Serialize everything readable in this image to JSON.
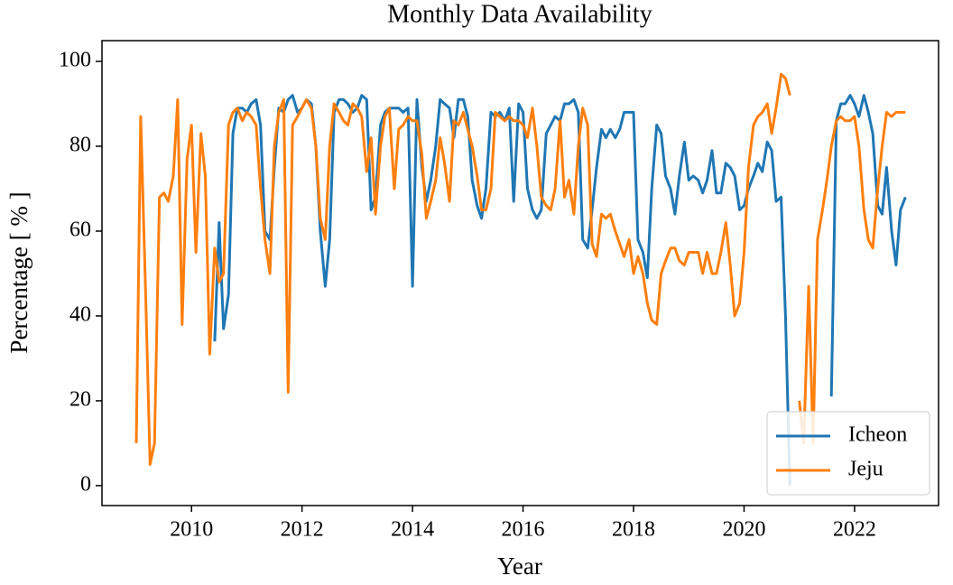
{
  "chart_data": {
    "type": "line",
    "title": "Monthly Data Availability",
    "x_label": "Year",
    "y_label": "Percentage [ % ]",
    "x": [
      2009.0,
      2009.08,
      2009.17,
      2009.25,
      2009.33,
      2009.42,
      2009.5,
      2009.58,
      2009.67,
      2009.75,
      2009.83,
      2009.92,
      2010.0,
      2010.08,
      2010.17,
      2010.25,
      2010.33,
      2010.42,
      2010.5,
      2010.58,
      2010.67,
      2010.75,
      2010.83,
      2010.92,
      2011.0,
      2011.08,
      2011.17,
      2011.25,
      2011.33,
      2011.42,
      2011.5,
      2011.58,
      2011.67,
      2011.75,
      2011.83,
      2011.92,
      2012.0,
      2012.08,
      2012.17,
      2012.25,
      2012.33,
      2012.42,
      2012.5,
      2012.58,
      2012.67,
      2012.75,
      2012.83,
      2012.92,
      2013.0,
      2013.08,
      2013.17,
      2013.25,
      2013.33,
      2013.42,
      2013.5,
      2013.58,
      2013.67,
      2013.75,
      2013.83,
      2013.92,
      2014.0,
      2014.08,
      2014.17,
      2014.25,
      2014.33,
      2014.42,
      2014.5,
      2014.58,
      2014.67,
      2014.75,
      2014.83,
      2014.92,
      2015.0,
      2015.08,
      2015.17,
      2015.25,
      2015.33,
      2015.42,
      2015.5,
      2015.58,
      2015.67,
      2015.75,
      2015.83,
      2015.92,
      2016.0,
      2016.08,
      2016.17,
      2016.25,
      2016.33,
      2016.42,
      2016.5,
      2016.58,
      2016.67,
      2016.75,
      2016.83,
      2016.92,
      2017.0,
      2017.08,
      2017.17,
      2017.25,
      2017.33,
      2017.42,
      2017.5,
      2017.58,
      2017.67,
      2017.75,
      2017.83,
      2017.92,
      2018.0,
      2018.08,
      2018.17,
      2018.25,
      2018.33,
      2018.42,
      2018.5,
      2018.58,
      2018.67,
      2018.75,
      2018.83,
      2018.92,
      2019.0,
      2019.08,
      2019.17,
      2019.25,
      2019.33,
      2019.42,
      2019.5,
      2019.58,
      2019.67,
      2019.75,
      2019.83,
      2019.92,
      2020.0,
      2020.08,
      2020.17,
      2020.25,
      2020.33,
      2020.42,
      2020.5,
      2020.58,
      2020.67,
      2020.75,
      2020.83,
      2020.92,
      2021.0,
      2021.08,
      2021.17,
      2021.25,
      2021.33,
      2021.42,
      2021.5,
      2021.58,
      2021.67,
      2021.75,
      2021.83,
      2021.92,
      2022.0,
      2022.08,
      2022.17,
      2022.25,
      2022.33,
      2022.42,
      2022.5,
      2022.58,
      2022.67,
      2022.75,
      2022.83,
      2022.92
    ],
    "series": [
      {
        "name": "Icheon",
        "color": "#1f77b4",
        "values": [
          null,
          null,
          null,
          null,
          null,
          null,
          null,
          null,
          null,
          null,
          null,
          null,
          null,
          null,
          null,
          null,
          null,
          34,
          62,
          37,
          45,
          83,
          89,
          89,
          88,
          90,
          91,
          85,
          60,
          58,
          75,
          89,
          88,
          91,
          92,
          88,
          89,
          91,
          90,
          80,
          60,
          47,
          58,
          88,
          91,
          91,
          90,
          88,
          89,
          92,
          91,
          65,
          68,
          85,
          88,
          89,
          89,
          89,
          88,
          89,
          47,
          91,
          75,
          67,
          72,
          80,
          91,
          90,
          89,
          82,
          91,
          91,
          87,
          72,
          66,
          63,
          70,
          88,
          87,
          88,
          86,
          89,
          67,
          90,
          88,
          70,
          65,
          63,
          65,
          83,
          85,
          87,
          86,
          90,
          90,
          91,
          88,
          58,
          56,
          65,
          75,
          84,
          82,
          84,
          82,
          84,
          88,
          88,
          88,
          58,
          55,
          49,
          70,
          85,
          83,
          73,
          70,
          64,
          73,
          81,
          72,
          73,
          72,
          69,
          72,
          79,
          69,
          69,
          76,
          75,
          73,
          65,
          66,
          70,
          73,
          76,
          74,
          81,
          79,
          67,
          68,
          40,
          0,
          null,
          null,
          null,
          null,
          null,
          null,
          null,
          null,
          21,
          86,
          90,
          90,
          92,
          90,
          87,
          92,
          88,
          83,
          66,
          64,
          75,
          60,
          52,
          65,
          68
        ]
      },
      {
        "name": "Jeju",
        "color": "#ff7f0e",
        "values": [
          10,
          87,
          45,
          5,
          10,
          68,
          69,
          67,
          73,
          91,
          38,
          77,
          85,
          55,
          83,
          73,
          31,
          56,
          48,
          50,
          85,
          88,
          89,
          86,
          88,
          87,
          85,
          70,
          58,
          50,
          80,
          88,
          91,
          22,
          85,
          87,
          89,
          91,
          89,
          80,
          63,
          58,
          80,
          90,
          88,
          86,
          85,
          90,
          89,
          87,
          74,
          82,
          64,
          80,
          87,
          89,
          70,
          84,
          85,
          87,
          86,
          86,
          78,
          63,
          67,
          72,
          82,
          76,
          67,
          86,
          85,
          88,
          84,
          80,
          73,
          65,
          65,
          70,
          88,
          87,
          86,
          87,
          86,
          86,
          85,
          82,
          89,
          80,
          68,
          66,
          65,
          70,
          86,
          68,
          72,
          64,
          80,
          89,
          85,
          57,
          54,
          64,
          63,
          64,
          60,
          57,
          54,
          58,
          50,
          54,
          50,
          43,
          39,
          38,
          50,
          53,
          56,
          56,
          53,
          52,
          55,
          55,
          55,
          50,
          55,
          50,
          50,
          55,
          62,
          52,
          40,
          43,
          55,
          75,
          85,
          87,
          88,
          90,
          83,
          89,
          97,
          96,
          92,
          null,
          20,
          10,
          47,
          10,
          58,
          65,
          72,
          80,
          86,
          87,
          86,
          86,
          87,
          80,
          65,
          58,
          56,
          70,
          80,
          88,
          87,
          88,
          88,
          88
        ]
      }
    ],
    "xlim": [
      2008.38,
      2023.52
    ],
    "ylim": [
      -4.7,
      104.9
    ],
    "xticks": [
      2010,
      2012,
      2014,
      2016,
      2018,
      2020,
      2022
    ],
    "yticks": [
      0,
      20,
      40,
      60,
      80,
      100
    ],
    "legend": "lower right"
  }
}
